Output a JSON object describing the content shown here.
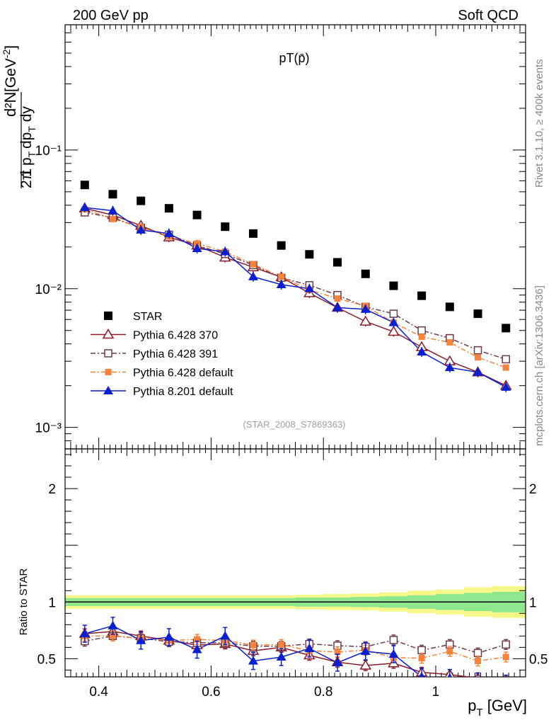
{
  "header": {
    "left": "200 GeV pp",
    "right": "Soft QCD",
    "plot_title": "pT(p̄)",
    "analysis_id": "(STAR_2008_S7869363)"
  },
  "side_labels": {
    "rivet": "Rivet 3.1.10, ≥ 400k events",
    "mcplots": "mcplots.cern.ch [arXiv:1306.3436]"
  },
  "colors": {
    "star": "#000000",
    "p370": "#8b1a2b",
    "p391": "#6b3b4b",
    "p6def": "#f5843a",
    "p8": "#0a1fd0",
    "band_outer": "#f7f78a",
    "band_inner": "#8ee88e"
  },
  "chart_data": [
    {
      "type": "scatter",
      "panel": "main",
      "title": "pT(p̄)",
      "xlabel": "p_T [GeV]",
      "ylabel": "1/(2π p_T) d²N/(dp_T dy) [GeV⁻²]",
      "yscale": "log",
      "xlim": [
        0.34,
        1.16
      ],
      "ylim": [
        0.0007,
        0.8
      ],
      "ytick_labels": [
        "10⁻³",
        "10⁻²",
        "10⁻¹"
      ],
      "legend_position": "bottom-left",
      "x": [
        0.375,
        0.425,
        0.475,
        0.525,
        0.575,
        0.625,
        0.675,
        0.725,
        0.775,
        0.825,
        0.875,
        0.925,
        0.975,
        1.025,
        1.075,
        1.125
      ],
      "series": [
        {
          "name": "STAR",
          "key": "star",
          "marker": "square",
          "values": [
            0.056,
            0.048,
            0.043,
            0.038,
            0.034,
            0.028,
            0.025,
            0.0205,
            0.0177,
            0.0155,
            0.0128,
            0.0105,
            0.0089,
            0.0074,
            0.0066,
            0.0052
          ]
        },
        {
          "name": "Pythia 6.428 370",
          "key": "p370",
          "marker": "triangle-open",
          "dash": "",
          "values": [
            0.038,
            0.034,
            0.0285,
            0.0235,
            0.0205,
            0.0168,
            0.0143,
            0.0121,
            0.0093,
            0.0073,
            0.0058,
            0.0049,
            0.0038,
            0.003,
            0.0025,
            0.002
          ]
        },
        {
          "name": "Pythia 6.428 391",
          "key": "p391",
          "marker": "square-open",
          "dash": "7,3,2,3",
          "values": [
            0.0355,
            0.0325,
            0.0275,
            0.0245,
            0.0205,
            0.0178,
            0.0148,
            0.012,
            0.0106,
            0.009,
            0.0074,
            0.0066,
            0.005,
            0.0044,
            0.0036,
            0.0031
          ]
        },
        {
          "name": "Pythia 6.428 default",
          "key": "p6def",
          "marker": "square-small",
          "dash": "7,3,2,3",
          "values": [
            0.0375,
            0.0318,
            0.0278,
            0.0238,
            0.0212,
            0.0185,
            0.015,
            0.0122,
            0.0098,
            0.0085,
            0.0075,
            0.0057,
            0.0045,
            0.0041,
            0.0032,
            0.0027
          ]
        },
        {
          "name": "Pythia 8.201 default",
          "key": "p8",
          "marker": "triangle",
          "dash": "",
          "values": [
            0.0385,
            0.0365,
            0.0265,
            0.025,
            0.0195,
            0.0185,
            0.0122,
            0.0107,
            0.01,
            0.0073,
            0.0071,
            0.0057,
            0.0035,
            0.0027,
            0.0025,
            0.00195
          ]
        }
      ]
    },
    {
      "type": "scatter",
      "panel": "ratio",
      "xlabel": "p_T [GeV]",
      "ylabel": "Ratio to STAR",
      "xlim": [
        0.34,
        1.16
      ],
      "ylim": [
        0.34,
        2.35
      ],
      "ytick_labels": [
        "0.5",
        "1",
        "2"
      ],
      "xtick_labels": [
        "0.4",
        "0.6",
        "0.8",
        "1"
      ],
      "x": [
        0.375,
        0.425,
        0.475,
        0.525,
        0.575,
        0.625,
        0.675,
        0.725,
        0.775,
        0.825,
        0.875,
        0.925,
        0.975,
        1.025,
        1.075,
        1.125
      ],
      "band_inner_halfwidth": [
        0.035,
        0.035,
        0.035,
        0.035,
        0.035,
        0.035,
        0.035,
        0.035,
        0.04,
        0.04,
        0.045,
        0.05,
        0.06,
        0.07,
        0.08,
        0.09
      ],
      "band_outer_halfwidth": [
        0.06,
        0.06,
        0.06,
        0.06,
        0.06,
        0.06,
        0.06,
        0.06,
        0.065,
        0.07,
        0.075,
        0.085,
        0.1,
        0.11,
        0.13,
        0.14
      ],
      "series": [
        {
          "name": "Pythia 6.428 370",
          "key": "p370",
          "values": [
            0.72,
            0.74,
            0.7,
            0.66,
            0.62,
            0.63,
            0.57,
            0.6,
            0.53,
            0.47,
            0.44,
            0.46,
            0.38,
            0.36,
            0.33,
            0.3
          ]
        },
        {
          "name": "Pythia 6.428 391",
          "key": "p391",
          "values": [
            0.655,
            0.7,
            0.68,
            0.65,
            0.64,
            0.64,
            0.61,
            0.61,
            0.63,
            0.615,
            0.605,
            0.665,
            0.575,
            0.625,
            0.55,
            0.625
          ]
        },
        {
          "name": "Pythia 6.428 default",
          "key": "p6def",
          "values": [
            0.7,
            0.7,
            0.68,
            0.66,
            0.67,
            0.66,
            0.62,
            0.625,
            0.57,
            0.56,
            0.575,
            0.51,
            0.505,
            0.565,
            0.48,
            0.515
          ]
        },
        {
          "name": "Pythia 8.201 default",
          "key": "p8",
          "values": [
            0.72,
            0.79,
            0.66,
            0.69,
            0.58,
            0.7,
            0.48,
            0.515,
            0.59,
            0.465,
            0.565,
            0.54,
            0.34,
            0.33,
            0.3,
            0.28
          ]
        }
      ]
    }
  ]
}
